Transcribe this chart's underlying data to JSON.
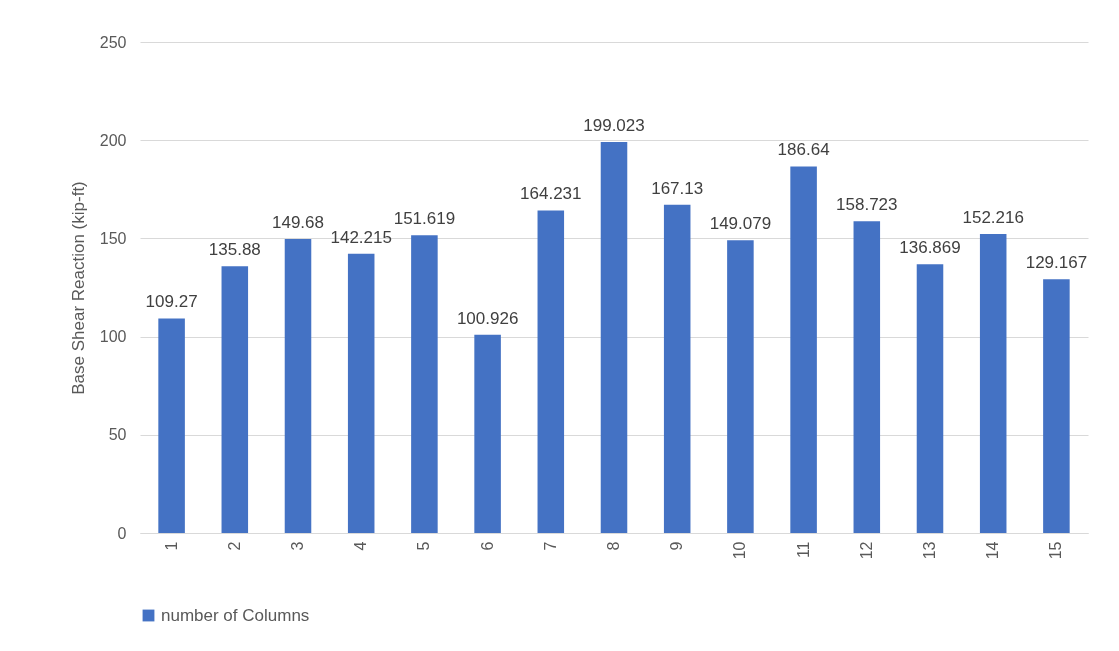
{
  "chart_data": {
    "type": "bar",
    "ylabel": "Base Shear Reaction (kip-ft)",
    "categories": [
      "1",
      "2",
      "3",
      "4",
      "5",
      "6",
      "7",
      "8",
      "9",
      "10",
      "11",
      "12",
      "13",
      "14",
      "15"
    ],
    "series": [
      {
        "name": "number of Columns",
        "color": "#4472c4",
        "values": [
          109.27,
          135.88,
          149.68,
          142.215,
          151.619,
          100.926,
          164.231,
          199.023,
          167.13,
          149.079,
          186.64,
          158.723,
          136.869,
          152.216,
          129.167
        ]
      }
    ],
    "ylim": [
      0,
      250
    ],
    "yticks": [
      0,
      50,
      100,
      150,
      200,
      250
    ],
    "grid": "y",
    "legend": "bottom",
    "data_labels": true
  }
}
